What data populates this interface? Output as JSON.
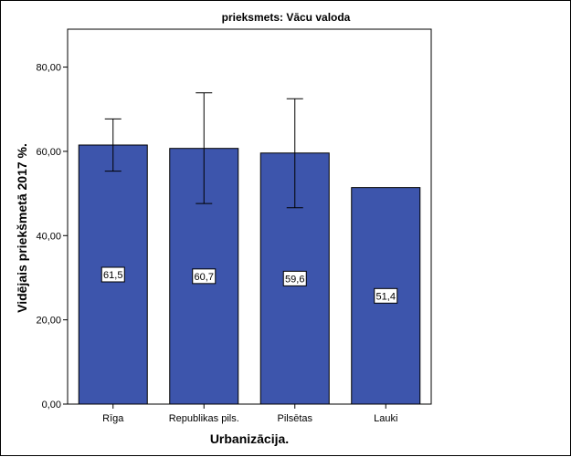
{
  "chart_data": {
    "type": "bar",
    "title": "prieksmets: Vācu valoda",
    "xlabel": "Urbanizācija.",
    "ylabel": "Vidējais priekšmetā 2017 %.",
    "categories": [
      "Rīga",
      "Republikas pils.",
      "Pilsētas",
      "Lauki"
    ],
    "values": [
      61.5,
      60.7,
      59.6,
      51.4
    ],
    "value_labels": [
      "61,5",
      "60,7",
      "59,6",
      "51,4"
    ],
    "error_low": [
      55.3,
      47.6,
      46.6,
      null
    ],
    "error_high": [
      67.7,
      73.9,
      72.5,
      null
    ],
    "ylim": [
      0,
      89
    ],
    "yticks": [
      0,
      20,
      40,
      60,
      80
    ],
    "ytick_labels": [
      "0,00",
      "20,00",
      "40,00",
      "60,00",
      "80,00"
    ],
    "grid": false,
    "legend": "none",
    "bar_color": "#3D55AC",
    "plot_background": "#ffffff"
  }
}
